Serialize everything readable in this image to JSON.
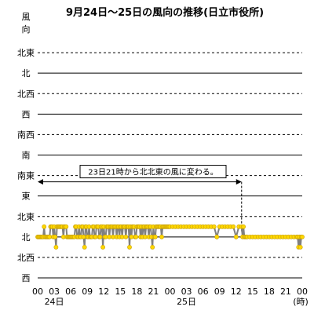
{
  "chart_data": {
    "type": "line",
    "title": "9月24日～25日の風向の推移(日立市役所)",
    "ylabel": "風向",
    "xlabel": "",
    "x_unit": "(時)",
    "direction_labels": [
      "北東",
      "北",
      "北西",
      "西",
      "南西",
      "南",
      "南東",
      "東",
      "北東",
      "北",
      "北西",
      "西"
    ],
    "dashed_levels": [
      0,
      2,
      4,
      6,
      8,
      10
    ],
    "x_tick_labels": [
      "00",
      "03",
      "06",
      "09",
      "12",
      "15",
      "18",
      "21",
      "00",
      "03",
      "06",
      "09",
      "12",
      "15",
      "18",
      "21",
      "00"
    ],
    "day_labels": [
      {
        "hour": 3,
        "text": "24日"
      },
      {
        "hour": 27,
        "text": "25日"
      }
    ],
    "xlim": [
      0,
      48
    ],
    "annotation": {
      "text": "23日21時から北北東の風に変わる。",
      "from_hour": 0,
      "to_hour": 37
    },
    "series": [
      {
        "description": "10-minute wind direction (levels: 8=北東, 8.5=北北東, 9=北, 9.5=北北西)",
        "x": [
          0,
          0.17,
          0.33,
          0.5,
          0.67,
          0.83,
          1,
          1.17,
          1.33,
          1.5,
          1.67,
          1.83,
          2,
          2.17,
          2.33,
          2.5,
          2.67,
          2.83,
          3,
          3.17,
          3.33,
          3.5,
          3.67,
          3.83,
          4,
          4.17,
          4.33,
          4.5,
          4.67,
          4.83,
          5,
          5.17,
          5.33,
          5.5,
          5.67,
          5.83,
          6,
          6.17,
          6.33,
          6.5,
          6.67,
          6.83,
          7,
          7.17,
          7.33,
          7.5,
          7.67,
          7.83,
          8,
          8.17,
          8.33,
          8.5,
          8.67,
          8.83,
          9,
          9.17,
          9.33,
          9.5,
          9.67,
          9.83,
          10,
          10.17,
          10.33,
          10.5,
          10.67,
          10.83,
          11,
          11.17,
          11.33,
          11.5,
          11.67,
          11.83,
          12,
          12.17,
          12.33,
          12.5,
          12.67,
          12.83,
          13,
          13.17,
          13.33,
          13.5,
          13.67,
          13.83,
          14,
          14.17,
          14.33,
          14.5,
          14.67,
          14.83,
          15,
          15.17,
          15.33,
          15.5,
          15.67,
          15.83,
          16,
          16.17,
          16.33,
          16.5,
          16.67,
          16.83,
          17,
          17.17,
          17.33,
          17.5,
          17.67,
          17.83,
          18,
          18.17,
          18.33,
          18.5,
          18.67,
          18.83,
          19,
          19.17,
          19.33,
          19.5,
          19.67,
          19.83,
          20,
          20.17,
          20.33,
          20.5,
          20.67,
          20.83,
          21,
          21.17,
          21.33,
          21.5,
          21.67,
          21.83,
          22,
          22.17,
          22.33,
          22.5,
          22.67,
          22.83,
          23,
          23.17,
          23.33,
          23.5,
          23.67,
          23.83,
          24,
          24.5,
          25,
          25.5,
          26,
          26.5,
          27,
          27.5,
          28,
          28.5,
          29,
          29.5,
          30,
          30.5,
          31,
          31.5,
          32,
          32.5,
          33,
          33.5,
          34,
          34.5,
          35,
          35.5,
          36,
          36.5,
          37,
          37.17,
          37.33,
          37.5,
          37.67,
          37.83,
          38,
          38.5,
          39,
          39.5,
          40,
          40.5,
          41,
          41.5,
          42,
          42.5,
          43,
          43.5,
          44,
          44.5,
          45,
          45.5,
          46,
          46.5,
          47,
          47.17,
          47.33,
          47.5,
          47.67,
          47.83,
          48
        ],
        "y": [
          9,
          9,
          9,
          9,
          9,
          9,
          9,
          8.5,
          9,
          9,
          9,
          9,
          9,
          9,
          8.5,
          8.5,
          8.5,
          9,
          8.5,
          9,
          9.5,
          8.5,
          8.5,
          8.5,
          8.5,
          8.5,
          8.5,
          8.5,
          9,
          8.5,
          8.5,
          8.5,
          9,
          9,
          9,
          9,
          9,
          9,
          9,
          9,
          9,
          8.5,
          8.5,
          9,
          9,
          8.5,
          9,
          9,
          8.5,
          8.5,
          9,
          9.5,
          8.5,
          8.5,
          9,
          9,
          8.5,
          9,
          9,
          9,
          8.5,
          8.5,
          9,
          9,
          8.5,
          8.5,
          8.5,
          9,
          9,
          8.5,
          8.5,
          9.5,
          8.5,
          9,
          9,
          8.5,
          8.5,
          8.5,
          9,
          8.5,
          8.5,
          8.5,
          9,
          8.5,
          8.5,
          8.5,
          9,
          8.5,
          8.5,
          9,
          8.5,
          8.5,
          9,
          8.5,
          8.5,
          8.5,
          9,
          8.5,
          8.5,
          8.5,
          9.5,
          8.5,
          9,
          8.5,
          8.5,
          8.5,
          9,
          9,
          8.5,
          8.5,
          8.5,
          8.5,
          9,
          8.5,
          9,
          8.5,
          8.5,
          9,
          8.5,
          8.5,
          8.5,
          9,
          8.5,
          8.5,
          9,
          9.5,
          8.5,
          9,
          9,
          8.5,
          8.5,
          8.5,
          8.5,
          8.5,
          8.5,
          9,
          8.5,
          8.5,
          8.5,
          8.5,
          8.5,
          8.5,
          8.5,
          8.5,
          8.5,
          8.5,
          8.5,
          8.5,
          8.5,
          8.5,
          8.5,
          8.5,
          8.5,
          8.5,
          8.5,
          8.5,
          8.5,
          8.5,
          8.5,
          8.5,
          8.5,
          9,
          8.5,
          8.5,
          8.5,
          8.5,
          8.5,
          8.5,
          9,
          8.5,
          8.5,
          9,
          8.5,
          9,
          9,
          9,
          9,
          9,
          9,
          9,
          9,
          9,
          9,
          9,
          9,
          9,
          9,
          9,
          9,
          9,
          9,
          9,
          9,
          9,
          9,
          9,
          9.5,
          9,
          9.5,
          9,
          9
        ]
      }
    ],
    "colors": {
      "line": "#808080",
      "marker_fill": "#ffd700",
      "marker_stroke": "#c8a000",
      "grid_solid": "#000000",
      "grid_dashed": "#000000",
      "annotation_line": "#000000"
    }
  }
}
